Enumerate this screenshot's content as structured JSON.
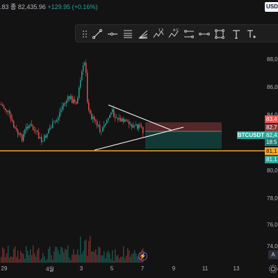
{
  "header": {
    "ohlc_fragment": ".83",
    "close_label": "종",
    "close_value": "82,435.96",
    "change": "+129.95 (+0.16%)"
  },
  "currency": "USDT",
  "drawing_toolbar": {
    "tools": [
      "drag-handle",
      "trend-line",
      "horizontal-ray",
      "fib-retracement",
      "fib-fan",
      "elliott-wave",
      "abcd-pattern",
      "price-range",
      "date-range",
      "rectangle",
      "text",
      "text-style"
    ]
  },
  "price_axis": {
    "ticks": [
      "88,0",
      "86,0",
      "84,0",
      "80,0",
      "78,0",
      "76,0",
      "74,0"
    ],
    "labels": {
      "stop": "83,4",
      "current": "82,7",
      "entry": "82,4",
      "countdown": "18:5",
      "support": "81,1",
      "target": "81,1"
    }
  },
  "ticker": "BTCUSDT",
  "time_axis": {
    "ticks": [
      "29",
      "4월",
      "3",
      "5",
      "7",
      "9",
      "11",
      "13"
    ]
  },
  "buttons": {
    "auto": "A"
  },
  "colors": {
    "bull": "#26a69a",
    "bear": "#ef5350",
    "support_line": "#f9a825",
    "risk_zone": "#5c2a2c",
    "reward_zone": "#123f3b",
    "pattern": "#ffffff"
  }
}
